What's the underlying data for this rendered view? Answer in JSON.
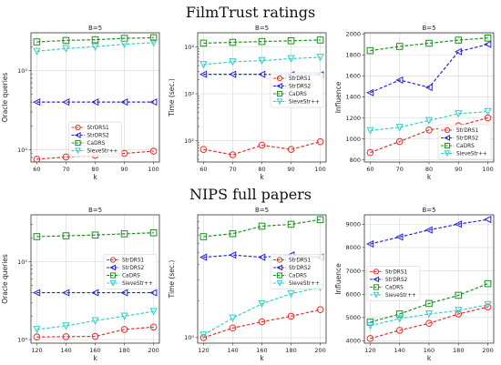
{
  "sections": [
    {
      "title": "FilmTrust ratings"
    },
    {
      "title": "NIPS full papers"
    }
  ],
  "colors": {
    "StrDRS1": "#e8312b",
    "StrDRS2": "#2a27d8",
    "CaDRS": "#1f8f1f",
    "SieveStr++": "#2fd1cc"
  },
  "chart_data": [
    {
      "type": "line",
      "title": "B=5",
      "xlabel": "k",
      "ylabel": "Oracle queries",
      "yscale": "log",
      "ylim": [
        7000,
        300000
      ],
      "xlim": [
        58,
        102
      ],
      "x": [
        60,
        70,
        80,
        90,
        100
      ],
      "xticks": [
        "60",
        "70",
        "80",
        "90",
        "100"
      ],
      "yticks": [
        {
          "value": 10000,
          "label": "10⁴"
        },
        {
          "value": 100000,
          "label": "10⁵"
        }
      ],
      "legend_position": "lower-center",
      "series": [
        {
          "name": "StrDRS1",
          "values": [
            7600,
            8100,
            8500,
            9000,
            9600
          ]
        },
        {
          "name": "StrDRS2",
          "values": [
            40000,
            40000,
            40000,
            40000,
            40000
          ]
        },
        {
          "name": "CaDRS",
          "values": [
            230000,
            240000,
            245000,
            255000,
            260000
          ]
        },
        {
          "name": "SieveStr++",
          "values": [
            175000,
            190000,
            200000,
            215000,
            225000
          ]
        }
      ]
    },
    {
      "type": "line",
      "title": "B=5",
      "xlabel": "k",
      "ylabel": "Time (sec.)",
      "yscale": "log",
      "ylim": [
        35,
        20000
      ],
      "xlim": [
        58,
        102
      ],
      "x": [
        60,
        70,
        80,
        90,
        100
      ],
      "xticks": [
        "60",
        "70",
        "80",
        "90",
        "100"
      ],
      "yticks": [
        {
          "value": 100,
          "label": "10²"
        },
        {
          "value": 1000,
          "label": "10³"
        },
        {
          "value": 10000,
          "label": "10⁴"
        }
      ],
      "legend_position": "right",
      "series": [
        {
          "name": "StrDRS1",
          "values": [
            65,
            50,
            80,
            65,
            95
          ]
        },
        {
          "name": "StrDRS2",
          "values": [
            2600,
            2600,
            2600,
            2550,
            2550
          ]
        },
        {
          "name": "CaDRS",
          "values": [
            12000,
            12500,
            13000,
            13500,
            14000
          ]
        },
        {
          "name": "SieveStr++",
          "values": [
            4200,
            4800,
            5100,
            5600,
            6000
          ]
        }
      ]
    },
    {
      "type": "line",
      "title": "B=5",
      "xlabel": "k",
      "ylabel": "Influence",
      "yscale": "linear",
      "ylim": [
        780,
        2010
      ],
      "xlim": [
        58,
        102
      ],
      "x": [
        60,
        70,
        80,
        90,
        100
      ],
      "xticks": [
        "60",
        "70",
        "80",
        "90",
        "100"
      ],
      "yticks": [
        {
          "value": 800,
          "label": "800"
        },
        {
          "value": 1000,
          "label": "1000"
        },
        {
          "value": 1200,
          "label": "1200"
        },
        {
          "value": 1400,
          "label": "1400"
        },
        {
          "value": 1600,
          "label": "1600"
        },
        {
          "value": 1800,
          "label": "1800"
        },
        {
          "value": 2000,
          "label": "2000"
        }
      ],
      "legend_position": "lower-right",
      "series": [
        {
          "name": "StrDRS1",
          "values": [
            870,
            975,
            1085,
            1125,
            1200
          ]
        },
        {
          "name": "StrDRS2",
          "values": [
            1440,
            1560,
            1490,
            1830,
            1900
          ]
        },
        {
          "name": "CaDRS",
          "values": [
            1840,
            1880,
            1910,
            1940,
            1960
          ]
        },
        {
          "name": "SieveStr++",
          "values": [
            1080,
            1110,
            1175,
            1240,
            1260
          ]
        }
      ]
    },
    {
      "type": "line",
      "title": "B=5",
      "xlabel": "k",
      "ylabel": "Oracle queries",
      "yscale": "log",
      "ylim": [
        9000,
        400000
      ],
      "xlim": [
        116,
        204
      ],
      "x": [
        120,
        140,
        160,
        180,
        200
      ],
      "xticks": [
        "120",
        "140",
        "160",
        "180",
        "200"
      ],
      "yticks": [
        {
          "value": 10000,
          "label": "10⁴"
        },
        {
          "value": 100000,
          "label": "10⁵"
        }
      ],
      "legend_position": "right",
      "series": [
        {
          "name": "StrDRS1",
          "values": [
            10800,
            10900,
            11000,
            13500,
            14500
          ]
        },
        {
          "name": "StrDRS2",
          "values": [
            40000,
            40000,
            40000,
            40000,
            40000
          ]
        },
        {
          "name": "CaDRS",
          "values": [
            210000,
            215000,
            220000,
            228000,
            235000
          ]
        },
        {
          "name": "SieveStr++",
          "values": [
            13500,
            15000,
            17500,
            20000,
            23000
          ]
        }
      ]
    },
    {
      "type": "line",
      "title": "B=5",
      "xlabel": "k",
      "ylabel": "Time (sec.)",
      "yscale": "log",
      "ylim": [
        0.9,
        10.3
      ],
      "xlim": [
        116,
        204
      ],
      "x": [
        120,
        140,
        160,
        180,
        200
      ],
      "xticks": [
        "120",
        "140",
        "160",
        "180",
        "200"
      ],
      "yticks": [
        {
          "value": 1,
          "label": "10⁰"
        }
      ],
      "legend_position": "right",
      "series": [
        {
          "name": "StrDRS1",
          "values": [
            1.0,
            1.2,
            1.35,
            1.5,
            1.7
          ]
        },
        {
          "name": "StrDRS2",
          "values": [
            4.6,
            4.8,
            4.6,
            4.8,
            4.6
          ]
        },
        {
          "name": "CaDRS",
          "values": [
            6.8,
            7.2,
            8.3,
            8.6,
            9.4
          ]
        },
        {
          "name": "SieveStr++",
          "values": [
            1.05,
            1.45,
            1.9,
            2.3,
            2.6
          ]
        }
      ]
    },
    {
      "type": "line",
      "title": "B=5",
      "xlabel": "k",
      "ylabel": "Influence",
      "yscale": "linear",
      "ylim": [
        3900,
        9400
      ],
      "xlim": [
        116,
        204
      ],
      "x": [
        120,
        140,
        160,
        180,
        200
      ],
      "xticks": [
        "120",
        "140",
        "160",
        "180",
        "200"
      ],
      "yticks": [
        {
          "value": 4000,
          "label": "4000"
        },
        {
          "value": 5000,
          "label": "5000"
        },
        {
          "value": 6000,
          "label": "6000"
        },
        {
          "value": 7000,
          "label": "7000"
        },
        {
          "value": 8000,
          "label": "8000"
        },
        {
          "value": 9000,
          "label": "9000"
        }
      ],
      "legend_position": "upper-left",
      "series": [
        {
          "name": "StrDRS1",
          "values": [
            4100,
            4450,
            4750,
            5150,
            5450
          ]
        },
        {
          "name": "StrDRS2",
          "values": [
            8150,
            8450,
            8750,
            9000,
            9200
          ]
        },
        {
          "name": "CaDRS",
          "values": [
            4800,
            5150,
            5600,
            5950,
            6450
          ]
        },
        {
          "name": "SieveStr++",
          "values": [
            4650,
            4950,
            5150,
            5300,
            5550
          ]
        }
      ]
    }
  ]
}
